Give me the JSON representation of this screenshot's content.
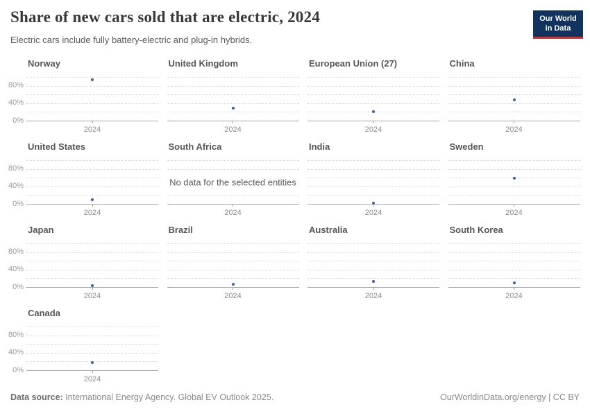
{
  "header": {
    "title": "Share of new cars sold that are electric, 2024",
    "subtitle": "Electric cars include fully battery-electric and plug-in hybrids.",
    "logo": {
      "line1": "Our World",
      "line2": "in Data",
      "bg_color": "#12335e",
      "accent_color": "#d0342c"
    }
  },
  "chart_data": {
    "type": "scatter",
    "title": "Share of new cars sold that are electric, 2024",
    "subtitle": "Electric cars include fully battery-electric and plug-in hybrids.",
    "layout": "small-multiples, 4 columns",
    "x_tick": "2024",
    "y_tick_labels": [
      "0%",
      "40%",
      "80%"
    ],
    "ylim": [
      0,
      100
    ],
    "grid": "horizontal dashed lines every 20%, solid baseline at 0%",
    "legend": "none",
    "unit": "%",
    "point_color": "#3b5ea9",
    "no_data_text": "No data for the selected entities",
    "facets": [
      {
        "name": "Norway",
        "value": 93
      },
      {
        "name": "United Kingdom",
        "value": 29
      },
      {
        "name": "European Union (27)",
        "value": 21
      },
      {
        "name": "China",
        "value": 48
      },
      {
        "name": "United States",
        "value": 10
      },
      {
        "name": "South Africa",
        "value": null,
        "no_data": true
      },
      {
        "name": "India",
        "value": 2
      },
      {
        "name": "Sweden",
        "value": 58
      },
      {
        "name": "Japan",
        "value": 3
      },
      {
        "name": "Brazil",
        "value": 7
      },
      {
        "name": "Australia",
        "value": 12
      },
      {
        "name": "South Korea",
        "value": 10
      },
      {
        "name": "Canada",
        "value": 17
      }
    ]
  },
  "footer": {
    "source_label": "Data source:",
    "source_text": " International Energy Agency. Global EV Outlook 2025.",
    "attribution": "OurWorldinData.org/energy | CC BY"
  }
}
